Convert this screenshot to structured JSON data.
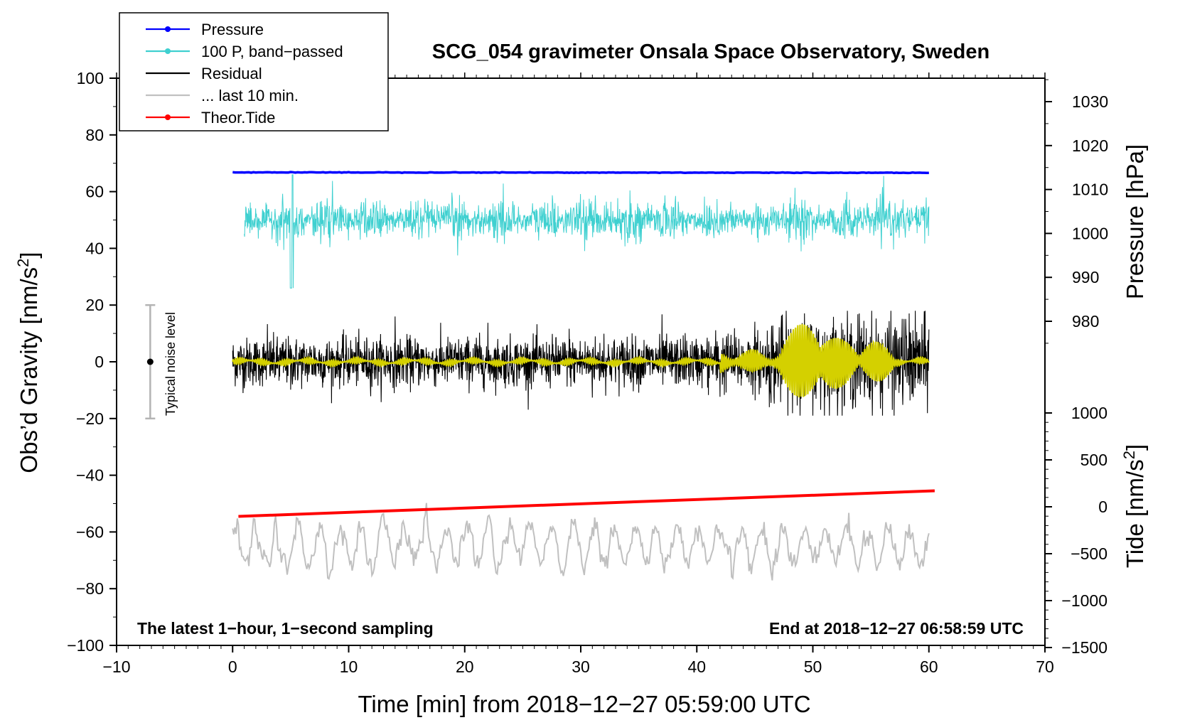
{
  "chart_data": {
    "type": "line",
    "title": "SCG_054 gravimeter Onsala Space Observatory, Sweden",
    "xlabel": "Time [min] from 2018−12−27 05:59:00 UTC",
    "ylabel_left": "Obs’d Gravity [nm/s²]",
    "ylabel_right_top": "Pressure [hPa]",
    "ylabel_right_bottom": "Tide [nm/s²]",
    "xlim": [
      -10,
      70
    ],
    "ylim": [
      -100,
      100
    ],
    "x_ticks": [
      -10,
      0,
      10,
      20,
      30,
      40,
      50,
      60,
      70
    ],
    "x_tick_labels": [
      "−10",
      "0",
      "10",
      "20",
      "30",
      "40",
      "50",
      "60",
      "70"
    ],
    "y_ticks": [
      100,
      80,
      60,
      40,
      20,
      0,
      -20,
      -40,
      -60,
      -80,
      -100
    ],
    "y_tick_labels": [
      "100",
      "80",
      "60",
      "40",
      "20",
      "0",
      "−20",
      "−40",
      "−60",
      "−80",
      "−100"
    ],
    "pressure_ticks": [
      1030,
      1020,
      1010,
      1000,
      990,
      980
    ],
    "pressure_tick_labels": [
      "1030",
      "1020",
      "1010",
      "1000",
      "990",
      "980"
    ],
    "tide_ticks": [
      1000,
      500,
      0,
      -500,
      -1000,
      -1500
    ],
    "tide_tick_labels": [
      "1000",
      "500",
      "0",
      "−500",
      "−1000",
      "−1500"
    ],
    "legend": [
      {
        "label": "Pressure",
        "color": "#0000ff",
        "marker": true
      },
      {
        "label": "100 P, band−passed",
        "color": "#3fd0d0",
        "marker": true
      },
      {
        "label": "Residual",
        "color": "#000000",
        "marker": false
      },
      {
        "label": "... last 10 min.",
        "color": "#c0c0c0",
        "marker": false
      },
      {
        "label": "Theor.Tide",
        "color": "#ff0000",
        "marker": true
      }
    ],
    "annotation_left": "The latest 1−hour, 1−second sampling",
    "annotation_right": "End at 2018−12−27 06:58:59 UTC",
    "noise_label": "Typical noise level",
    "noise_range": [
      -20,
      20
    ],
    "series": [
      {
        "name": "Pressure",
        "color": "#0000ff",
        "x_range": [
          0,
          60
        ],
        "y_obs_units": 66.8,
        "approx_pressure_hpa": 1013
      },
      {
        "name": "100 P, band−passed",
        "color": "#3fd0d0",
        "x_range": [
          1,
          60
        ],
        "center": 50,
        "approx_range": [
          24,
          66
        ]
      },
      {
        "name": "Residual",
        "color": "#000000",
        "x_range": [
          0,
          60
        ],
        "center": 0,
        "approx_range": [
          -19,
          18
        ]
      },
      {
        "name": "Residual (smoothed)",
        "color": "#d4d000",
        "x_range": [
          0,
          60
        ],
        "center": 0,
        "burst_windows_min": [
          [
            48,
            50
          ],
          [
            51,
            53
          ],
          [
            55,
            56
          ]
        ]
      },
      {
        "name": "... last 10 min.",
        "color": "#c0c0c0",
        "x_range": [
          0,
          60
        ],
        "center": -65,
        "approx_range": [
          -79,
          -45
        ]
      },
      {
        "name": "Theor.Tide",
        "color": "#ff0000",
        "x": [
          0.5,
          60.5
        ],
        "y_obs_units": [
          -54.5,
          -45.5
        ],
        "tide_nm_s2": [
          -140,
          120
        ]
      }
    ]
  },
  "colors": {
    "pressure": "#0000ff",
    "bandpassed": "#3fd0d0",
    "residual": "#000000",
    "smoothed": "#d4d000",
    "last10": "#c0c0c0",
    "tide": "#ff0000",
    "noise_bar": "#b4b4b4"
  }
}
